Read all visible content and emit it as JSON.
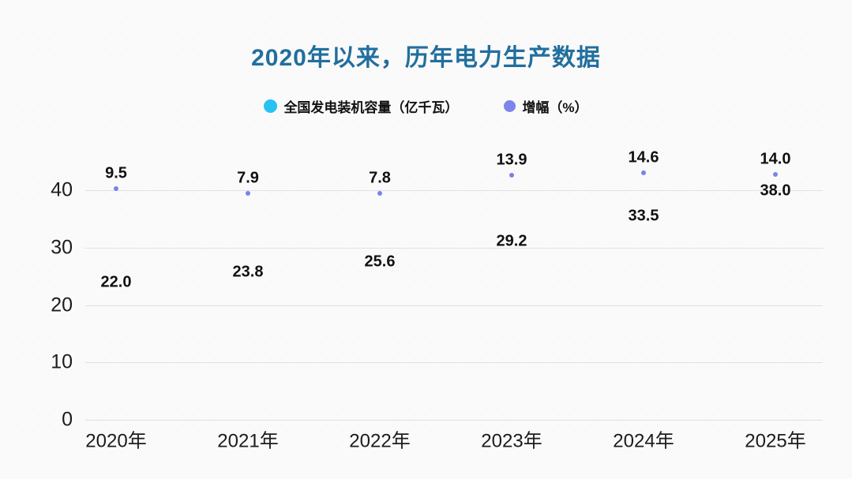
{
  "title": {
    "text": "2020年以来，历年电力生产数据",
    "color": "#216f9e"
  },
  "legend": {
    "items": [
      {
        "label": "全国发电装机容量（亿千瓦）",
        "color": "#27c2f2"
      },
      {
        "label": "增幅（%）",
        "color": "#7d84ea"
      }
    ]
  },
  "chart_data": {
    "type": "scatter",
    "categories": [
      "2020年",
      "2021年",
      "2022年",
      "2023年",
      "2024年",
      "2025年"
    ],
    "series": [
      {
        "name": "全国发电装机容量（亿千瓦）",
        "values": [
          22.0,
          23.8,
          25.6,
          29.2,
          33.5,
          38.0
        ],
        "axis": "left",
        "marker": "none",
        "labels_visible": true
      },
      {
        "name": "增幅（%）",
        "values": [
          9.5,
          7.9,
          7.8,
          13.9,
          14.6,
          14.0
        ],
        "axis": "right-hidden",
        "marker": "dot",
        "marker_color": "#7b82e8",
        "labels_visible": true
      }
    ],
    "title": "2020年以来，历年电力生产数据",
    "xlabel": "",
    "ylabel": "",
    "y_axis": {
      "ticks": [
        0,
        10,
        20,
        30,
        40
      ],
      "ylim": [
        0,
        44
      ]
    },
    "grid": true,
    "legend_position": "top",
    "gridline_color": "#e0e0e0",
    "tick_label_color": "#1c1c1c",
    "data_label_color": "#111111"
  }
}
